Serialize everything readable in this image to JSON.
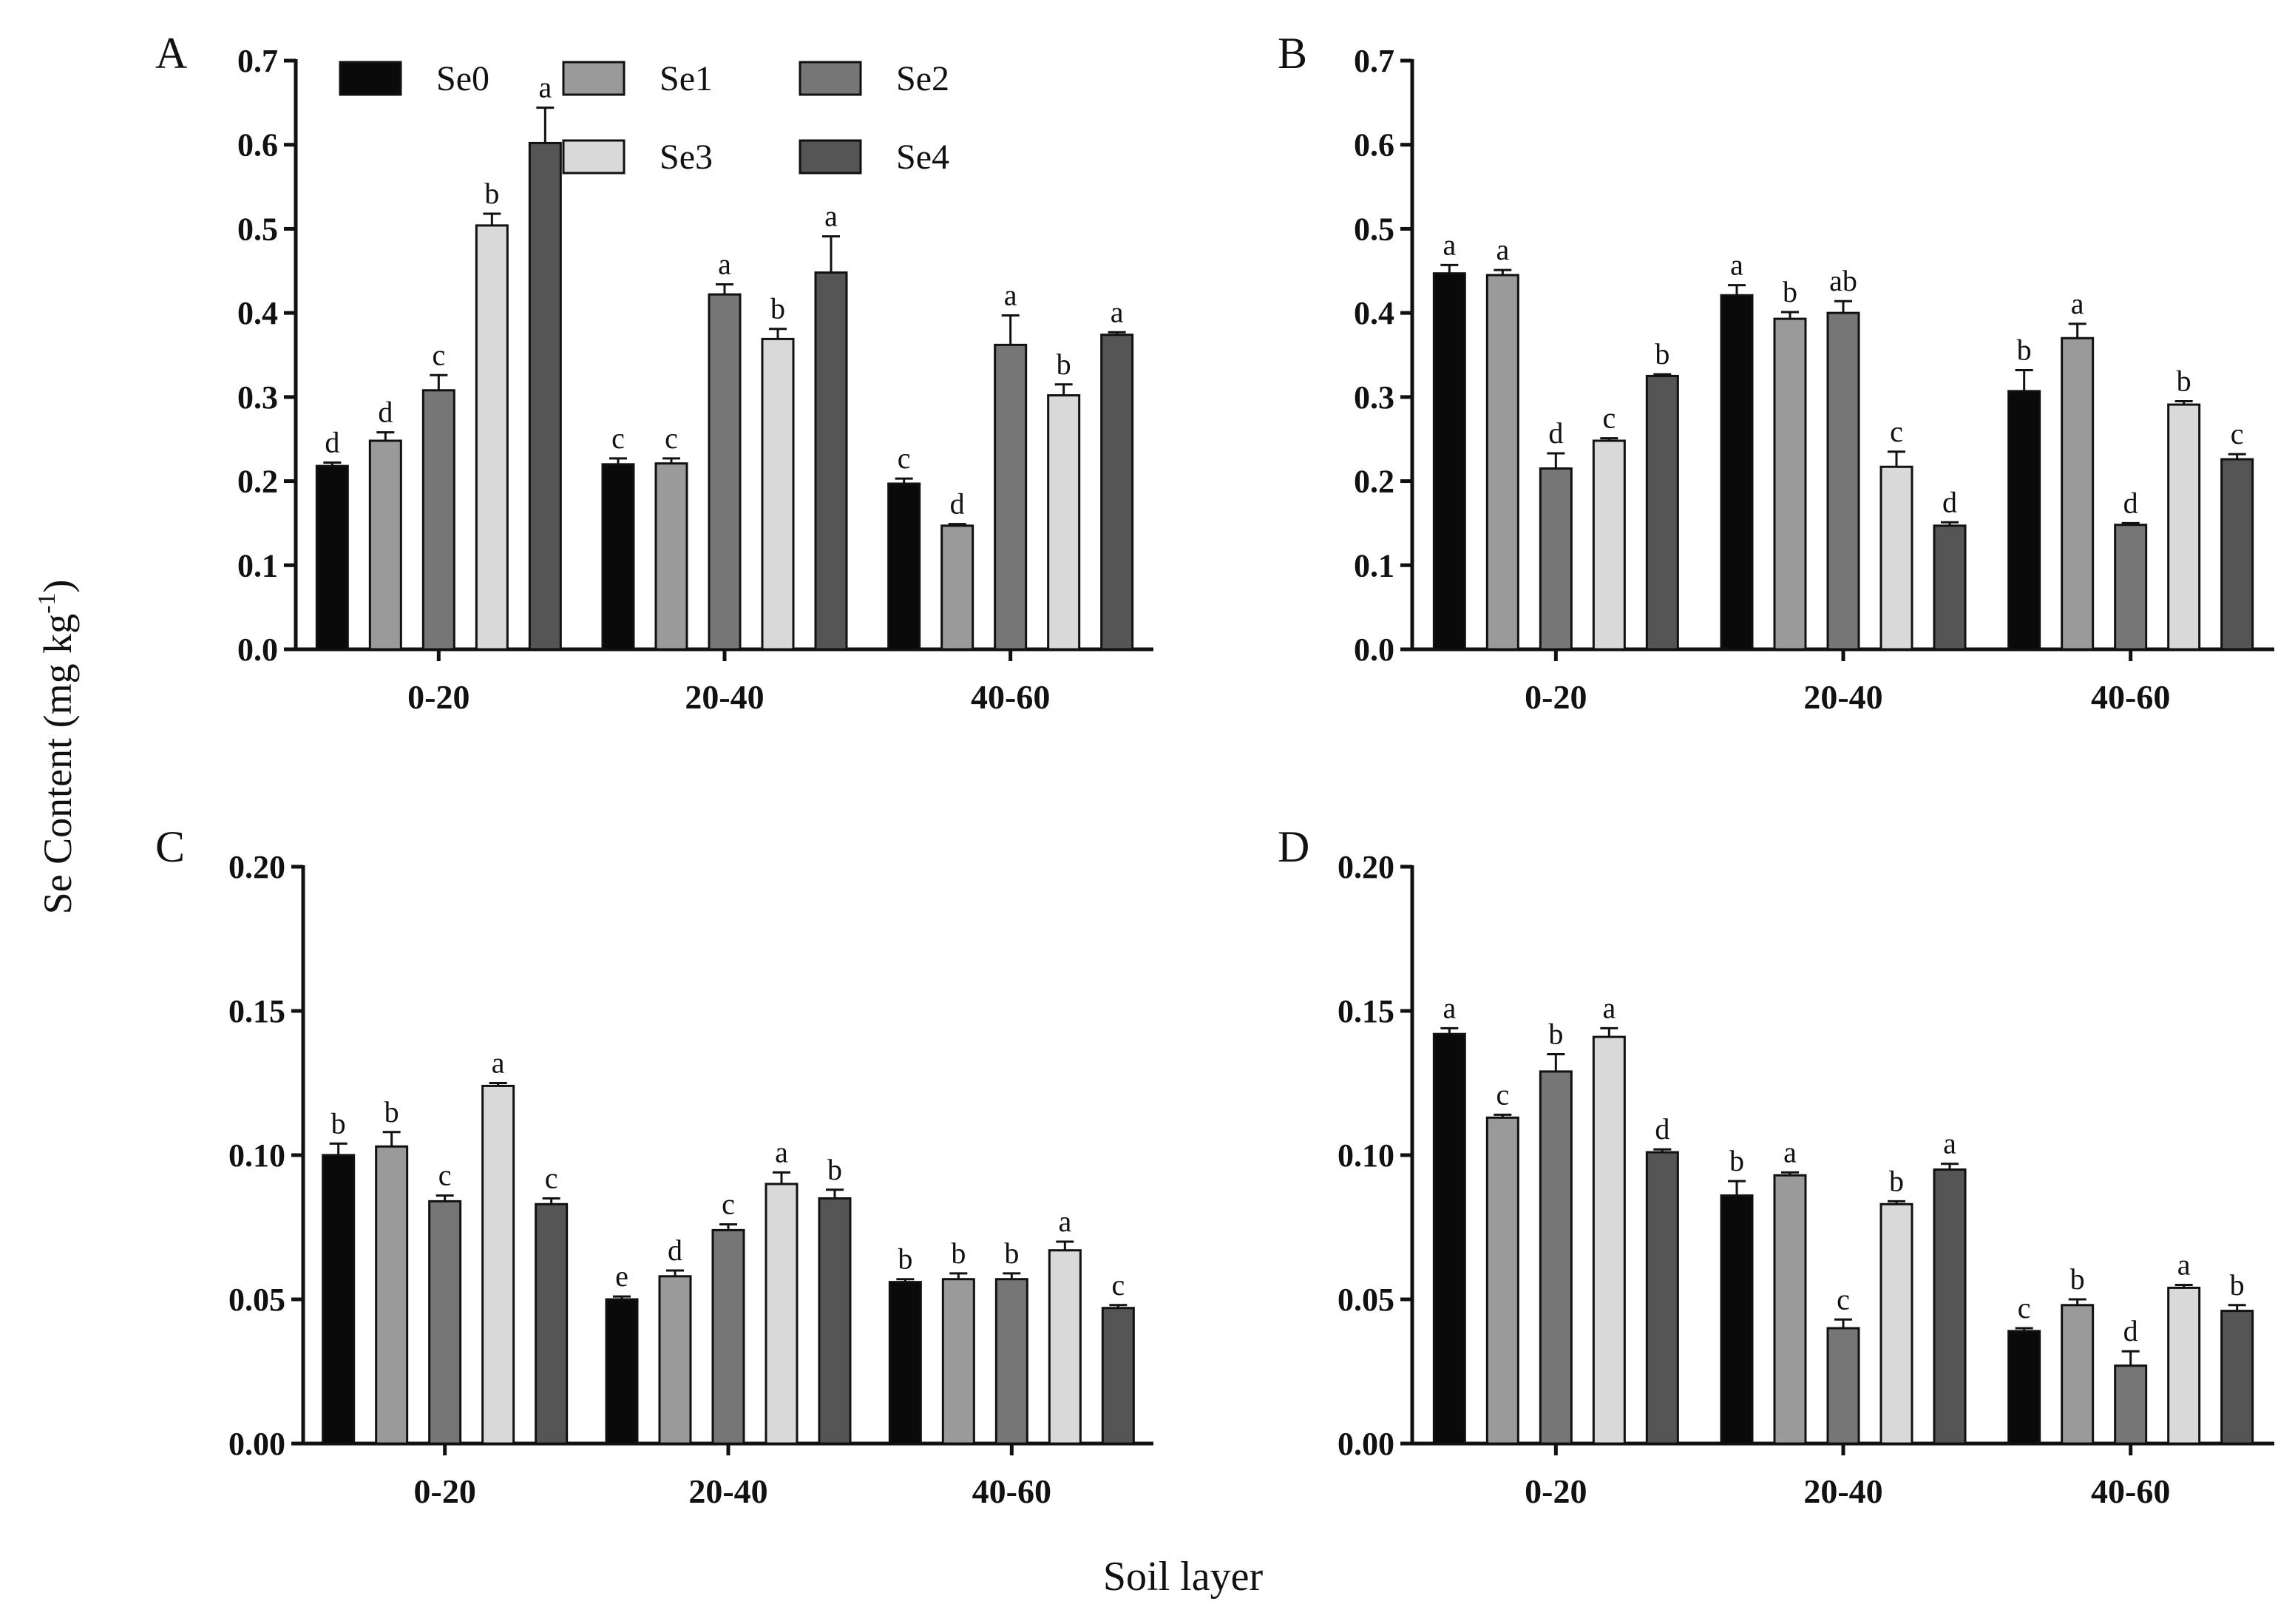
{
  "figure": {
    "ylabel": "Se Content (mg kg",
    "ylabel_sup": "-1",
    "ylabel_close": ")",
    "xlabel": "Soil layer"
  },
  "legend": {
    "entries": [
      "Se0",
      "Se1",
      "Se2",
      "Se3",
      "Se4"
    ]
  },
  "colors": {
    "Se0": "#0a0a0a",
    "Se1": "#9a9a9a",
    "Se2": "#767676",
    "Se3": "#d9d9d9",
    "Se4": "#555555"
  },
  "chart_data": [
    {
      "type": "bar",
      "panel": "A",
      "categories": [
        "0-20",
        "20-40",
        "40-60"
      ],
      "ylim": [
        0,
        0.7
      ],
      "yticks": [
        "0.0",
        "0.1",
        "0.2",
        "0.3",
        "0.4",
        "0.5",
        "0.6",
        "0.7"
      ],
      "series": [
        {
          "name": "Se0",
          "values": [
            0.218,
            0.22,
            0.197
          ],
          "errors": [
            0.004,
            0.007,
            0.006
          ],
          "letters": [
            "d",
            "c",
            "c"
          ]
        },
        {
          "name": "Se1",
          "values": [
            0.248,
            0.221,
            0.147
          ],
          "errors": [
            0.01,
            0.006,
            0.002
          ],
          "letters": [
            "d",
            "c",
            "d"
          ]
        },
        {
          "name": "Se2",
          "values": [
            0.308,
            0.422,
            0.362
          ],
          "errors": [
            0.018,
            0.012,
            0.035
          ],
          "letters": [
            "c",
            "a",
            "a"
          ]
        },
        {
          "name": "Se3",
          "values": [
            0.504,
            0.369,
            0.302
          ],
          "errors": [
            0.014,
            0.012,
            0.013
          ],
          "letters": [
            "b",
            "b",
            "b"
          ]
        },
        {
          "name": "Se4",
          "values": [
            0.602,
            0.448,
            0.374
          ],
          "errors": [
            0.042,
            0.043,
            0.003
          ],
          "letters": [
            "a",
            "a",
            "a"
          ]
        }
      ]
    },
    {
      "type": "bar",
      "panel": "B",
      "categories": [
        "0-20",
        "20-40",
        "40-60"
      ],
      "ylim": [
        0,
        0.7
      ],
      "yticks": [
        "0.0",
        "0.1",
        "0.2",
        "0.3",
        "0.4",
        "0.5",
        "0.6",
        "0.7"
      ],
      "series": [
        {
          "name": "Se0",
          "values": [
            0.447,
            0.421,
            0.307
          ],
          "errors": [
            0.01,
            0.012,
            0.025
          ],
          "letters": [
            "a",
            "a",
            "b"
          ]
        },
        {
          "name": "Se1",
          "values": [
            0.445,
            0.393,
            0.37
          ],
          "errors": [
            0.006,
            0.008,
            0.017
          ],
          "letters": [
            "a",
            "b",
            "a"
          ]
        },
        {
          "name": "Se2",
          "values": [
            0.215,
            0.4,
            0.148
          ],
          "errors": [
            0.018,
            0.014,
            0.002
          ],
          "letters": [
            "d",
            "ab",
            "d"
          ]
        },
        {
          "name": "Se3",
          "values": [
            0.248,
            0.217,
            0.291
          ],
          "errors": [
            0.003,
            0.018,
            0.004
          ],
          "letters": [
            "c",
            "c",
            "b"
          ]
        },
        {
          "name": "Se4",
          "values": [
            0.325,
            0.147,
            0.226
          ],
          "errors": [
            0.002,
            0.004,
            0.006
          ],
          "letters": [
            "b",
            "d",
            "c"
          ]
        }
      ]
    },
    {
      "type": "bar",
      "panel": "C",
      "categories": [
        "0-20",
        "20-40",
        "40-60"
      ],
      "ylim": [
        0,
        0.2
      ],
      "yticks": [
        "0.00",
        "0.05",
        "0.10",
        "0.15",
        "0.20"
      ],
      "series": [
        {
          "name": "Se0",
          "values": [
            0.1,
            0.05,
            0.056
          ],
          "errors": [
            0.004,
            0.001,
            0.001
          ],
          "letters": [
            "b",
            "e",
            "b"
          ]
        },
        {
          "name": "Se1",
          "values": [
            0.103,
            0.058,
            0.057
          ],
          "errors": [
            0.005,
            0.002,
            0.002
          ],
          "letters": [
            "b",
            "d",
            "b"
          ]
        },
        {
          "name": "Se2",
          "values": [
            0.084,
            0.074,
            0.057
          ],
          "errors": [
            0.002,
            0.002,
            0.002
          ],
          "letters": [
            "c",
            "c",
            "b"
          ]
        },
        {
          "name": "Se3",
          "values": [
            0.124,
            0.09,
            0.067
          ],
          "errors": [
            0.001,
            0.004,
            0.003
          ],
          "letters": [
            "a",
            "a",
            "a"
          ]
        },
        {
          "name": "Se4",
          "values": [
            0.083,
            0.085,
            0.047
          ],
          "errors": [
            0.002,
            0.003,
            0.001
          ],
          "letters": [
            "c",
            "b",
            "c"
          ]
        }
      ]
    },
    {
      "type": "bar",
      "panel": "D",
      "categories": [
        "0-20",
        "20-40",
        "40-60"
      ],
      "ylim": [
        0,
        0.2
      ],
      "yticks": [
        "0.00",
        "0.05",
        "0.10",
        "0.15",
        "0.20"
      ],
      "series": [
        {
          "name": "Se0",
          "values": [
            0.142,
            0.086,
            0.039
          ],
          "errors": [
            0.002,
            0.005,
            0.001
          ],
          "letters": [
            "a",
            "b",
            "c"
          ]
        },
        {
          "name": "Se1",
          "values": [
            0.113,
            0.093,
            0.048
          ],
          "errors": [
            0.001,
            0.001,
            0.002
          ],
          "letters": [
            "c",
            "a",
            "b"
          ]
        },
        {
          "name": "Se2",
          "values": [
            0.129,
            0.04,
            0.027
          ],
          "errors": [
            0.006,
            0.003,
            0.005
          ],
          "letters": [
            "b",
            "c",
            "d"
          ]
        },
        {
          "name": "Se3",
          "values": [
            0.141,
            0.083,
            0.054
          ],
          "errors": [
            0.003,
            0.001,
            0.001
          ],
          "letters": [
            "a",
            "b",
            "a"
          ]
        },
        {
          "name": "Se4",
          "values": [
            0.101,
            0.095,
            0.046
          ],
          "errors": [
            0.001,
            0.002,
            0.002
          ],
          "letters": [
            "d",
            "a",
            "b"
          ]
        }
      ]
    }
  ]
}
